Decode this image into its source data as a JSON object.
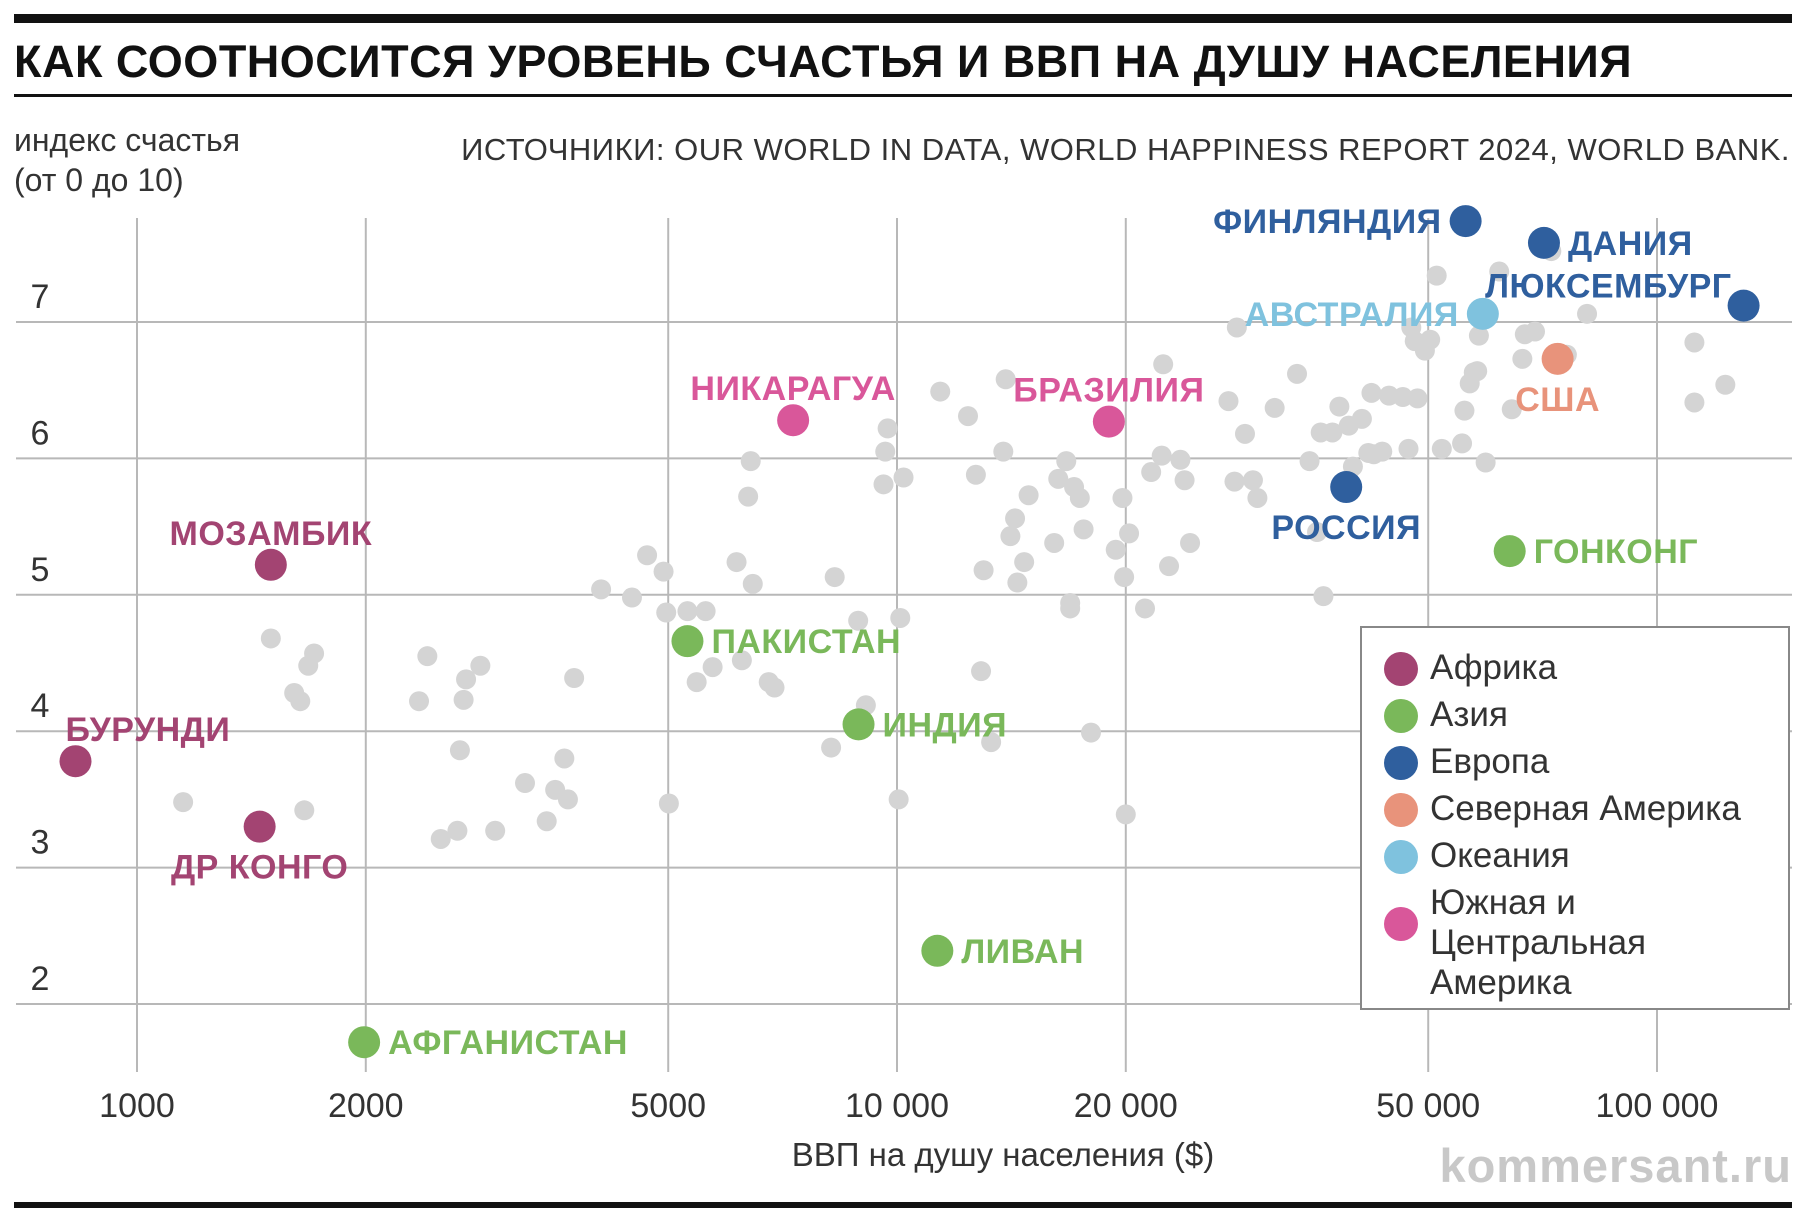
{
  "title": "КАК СООТНОСИТСЯ УРОВЕНЬ СЧАСТЬЯ И ВВП НА ДУШУ НАСЕЛЕНИЯ",
  "source": "ИСТОЧНИКИ: OUR WORLD IN DATA, WORLD HAPPINESS REPORT 2024, WORLD BANK.",
  "watermark": "kommersant.ru",
  "colors": {
    "africa": "#a34472",
    "asia": "#7ab85a",
    "europe": "#2f5f9e",
    "north_america": "#e8937b",
    "oceania": "#7fc2de",
    "latam": "#d9579a",
    "background_point": "#d4d4d4"
  },
  "chart_data": {
    "type": "scatter",
    "xlabel": "ВВП на душу населения ($)",
    "ylabel": "индекс счастья\n(от 0 до 10)",
    "xscale": "log",
    "xlim": [
      800,
      150000
    ],
    "ylim": [
      1.5,
      7.75
    ],
    "xticks": [
      1000,
      2000,
      5000,
      10000,
      20000,
      50000,
      100000
    ],
    "xtick_labels": [
      "1000",
      "2000",
      "5000",
      "10 000",
      "20 000",
      "50 000",
      "100 000"
    ],
    "yticks": [
      2,
      3,
      4,
      5,
      6,
      7
    ],
    "ytick_labels": [
      "2",
      "3",
      "4",
      "5",
      "6",
      "7"
    ],
    "grid": true,
    "legend": {
      "position": "bottom-right",
      "items": [
        {
          "label": "Африка",
          "color": "#a34472"
        },
        {
          "label": "Азия",
          "color": "#7ab85a"
        },
        {
          "label": "Европа",
          "color": "#2f5f9e"
        },
        {
          "label": "Северная Америка",
          "color": "#e8937b"
        },
        {
          "label": "Океания",
          "color": "#7fc2de"
        },
        {
          "label": "Южная и Центральная\nАмерика",
          "color": "#d9579a"
        }
      ]
    },
    "highlighted": [
      {
        "label": "ФИНЛЯНДИЯ",
        "x": 56000,
        "y": 7.74,
        "region": "europe",
        "label_side": "left"
      },
      {
        "label": "ДАНИЯ",
        "x": 71000,
        "y": 7.58,
        "region": "europe",
        "label_side": "right"
      },
      {
        "label": "ЛЮКСЕМБУРГ",
        "x": 130000,
        "y": 7.12,
        "region": "europe",
        "label_side": "left-above"
      },
      {
        "label": "АВСТРАЛИЯ",
        "x": 59000,
        "y": 7.06,
        "region": "oceania",
        "label_side": "left"
      },
      {
        "label": "США",
        "x": 74000,
        "y": 6.73,
        "region": "north_america",
        "label_side": "below"
      },
      {
        "label": "РОССИЯ",
        "x": 39000,
        "y": 5.79,
        "region": "europe",
        "label_side": "below"
      },
      {
        "label": "ГОНКОНГ",
        "x": 64000,
        "y": 5.32,
        "region": "asia",
        "label_side": "right"
      },
      {
        "label": "НИКАРАГУА",
        "x": 7300,
        "y": 6.28,
        "region": "latam",
        "label_side": "above"
      },
      {
        "label": "БРАЗИЛИЯ",
        "x": 19000,
        "y": 6.27,
        "region": "latam",
        "label_side": "above"
      },
      {
        "label": "МОЗАМБИК",
        "x": 1500,
        "y": 5.22,
        "region": "africa",
        "label_side": "above"
      },
      {
        "label": "ПАКИСТАН",
        "x": 5300,
        "y": 4.66,
        "region": "asia",
        "label_side": "right"
      },
      {
        "label": "ИНДИЯ",
        "x": 8900,
        "y": 4.05,
        "region": "asia",
        "label_side": "right"
      },
      {
        "label": "БУРУНДИ",
        "x": 830,
        "y": 3.78,
        "region": "africa",
        "label_side": "above-right"
      },
      {
        "label": "ДР КОНГО",
        "x": 1450,
        "y": 3.3,
        "region": "africa",
        "label_side": "below"
      },
      {
        "label": "ЛИВАН",
        "x": 11300,
        "y": 2.39,
        "region": "asia",
        "label_side": "right"
      },
      {
        "label": "АФГАНИСТАН",
        "x": 1990,
        "y": 1.72,
        "region": "asia",
        "label_side": "right"
      }
    ],
    "background": [
      [
        1150,
        3.48
      ],
      [
        1500,
        4.68
      ],
      [
        1610,
        4.28
      ],
      [
        1640,
        4.22
      ],
      [
        1660,
        3.42
      ],
      [
        1680,
        4.48
      ],
      [
        1710,
        4.57
      ],
      [
        2350,
        4.22
      ],
      [
        2410,
        4.55
      ],
      [
        2510,
        3.21
      ],
      [
        2640,
        3.27
      ],
      [
        2660,
        3.86
      ],
      [
        2690,
        4.23
      ],
      [
        2710,
        4.38
      ],
      [
        2830,
        4.48
      ],
      [
        2960,
        3.27
      ],
      [
        3240,
        3.62
      ],
      [
        3460,
        3.34
      ],
      [
        3550,
        3.57
      ],
      [
        3650,
        3.8
      ],
      [
        3690,
        3.5
      ],
      [
        3760,
        4.39
      ],
      [
        4080,
        5.04
      ],
      [
        4480,
        4.98
      ],
      [
        4690,
        5.29
      ],
      [
        4930,
        5.17
      ],
      [
        4970,
        4.87
      ],
      [
        5010,
        3.47
      ],
      [
        5300,
        4.88
      ],
      [
        5450,
        4.36
      ],
      [
        5600,
        4.88
      ],
      [
        5720,
        4.47
      ],
      [
        6150,
        5.24
      ],
      [
        6250,
        4.52
      ],
      [
        6370,
        5.72
      ],
      [
        6420,
        5.98
      ],
      [
        6460,
        5.08
      ],
      [
        6780,
        4.36
      ],
      [
        6900,
        4.32
      ],
      [
        8190,
        3.88
      ],
      [
        8280,
        5.13
      ],
      [
        8890,
        4.81
      ],
      [
        9100,
        4.19
      ],
      [
        9600,
        5.81
      ],
      [
        9650,
        6.05
      ],
      [
        9720,
        6.22
      ],
      [
        10050,
        3.5
      ],
      [
        10100,
        4.83
      ],
      [
        10200,
        5.86
      ],
      [
        11400,
        6.49
      ],
      [
        12400,
        6.31
      ],
      [
        12700,
        5.88
      ],
      [
        12900,
        4.44
      ],
      [
        13000,
        5.18
      ],
      [
        13300,
        3.92
      ],
      [
        13800,
        6.05
      ],
      [
        13900,
        6.58
      ],
      [
        14100,
        5.43
      ],
      [
        14300,
        5.56
      ],
      [
        14400,
        5.09
      ],
      [
        14700,
        5.24
      ],
      [
        14900,
        5.73
      ],
      [
        16100,
        5.38
      ],
      [
        16300,
        5.85
      ],
      [
        16700,
        5.98
      ],
      [
        16900,
        4.9
      ],
      [
        16900,
        4.94
      ],
      [
        17100,
        5.79
      ],
      [
        17400,
        5.71
      ],
      [
        17600,
        5.48
      ],
      [
        18000,
        3.99
      ],
      [
        19400,
        5.33
      ],
      [
        19800,
        5.71
      ],
      [
        19900,
        5.13
      ],
      [
        20000,
        3.39
      ],
      [
        20200,
        5.45
      ],
      [
        21200,
        4.9
      ],
      [
        21600,
        5.9
      ],
      [
        22300,
        6.02
      ],
      [
        22400,
        6.69
      ],
      [
        22800,
        5.21
      ],
      [
        23600,
        5.99
      ],
      [
        23900,
        5.84
      ],
      [
        24300,
        5.38
      ],
      [
        27300,
        6.42
      ],
      [
        27800,
        5.83
      ],
      [
        28000,
        6.96
      ],
      [
        28700,
        6.18
      ],
      [
        29400,
        5.84
      ],
      [
        29800,
        5.71
      ],
      [
        31400,
        6.37
      ],
      [
        33600,
        6.62
      ],
      [
        34900,
        5.98
      ],
      [
        35700,
        5.46
      ],
      [
        36100,
        6.19
      ],
      [
        36400,
        4.99
      ],
      [
        37400,
        6.19
      ],
      [
        38200,
        6.38
      ],
      [
        39300,
        6.24
      ],
      [
        39800,
        5.94
      ],
      [
        40900,
        6.29
      ],
      [
        41700,
        6.04
      ],
      [
        42100,
        6.48
      ],
      [
        42400,
        6.03
      ],
      [
        43500,
        6.05
      ],
      [
        44400,
        6.46
      ],
      [
        46300,
        6.45
      ],
      [
        47100,
        6.07
      ],
      [
        47500,
        6.96
      ],
      [
        48000,
        6.86
      ],
      [
        48400,
        6.44
      ],
      [
        49500,
        6.79
      ],
      [
        50300,
        6.87
      ],
      [
        51300,
        7.34
      ],
      [
        52100,
        6.07
      ],
      [
        55400,
        6.11
      ],
      [
        55800,
        6.35
      ],
      [
        56700,
        6.55
      ],
      [
        57400,
        6.63
      ],
      [
        58000,
        6.64
      ],
      [
        58300,
        6.9
      ],
      [
        59500,
        5.97
      ],
      [
        62000,
        7.37
      ],
      [
        64400,
        6.36
      ],
      [
        66500,
        6.73
      ],
      [
        67000,
        6.91
      ],
      [
        69100,
        6.93
      ],
      [
        72600,
        7.52
      ],
      [
        76100,
        6.76
      ],
      [
        80900,
        7.06
      ],
      [
        112000,
        6.85
      ],
      [
        112000,
        6.41
      ],
      [
        123000,
        6.54
      ]
    ]
  }
}
